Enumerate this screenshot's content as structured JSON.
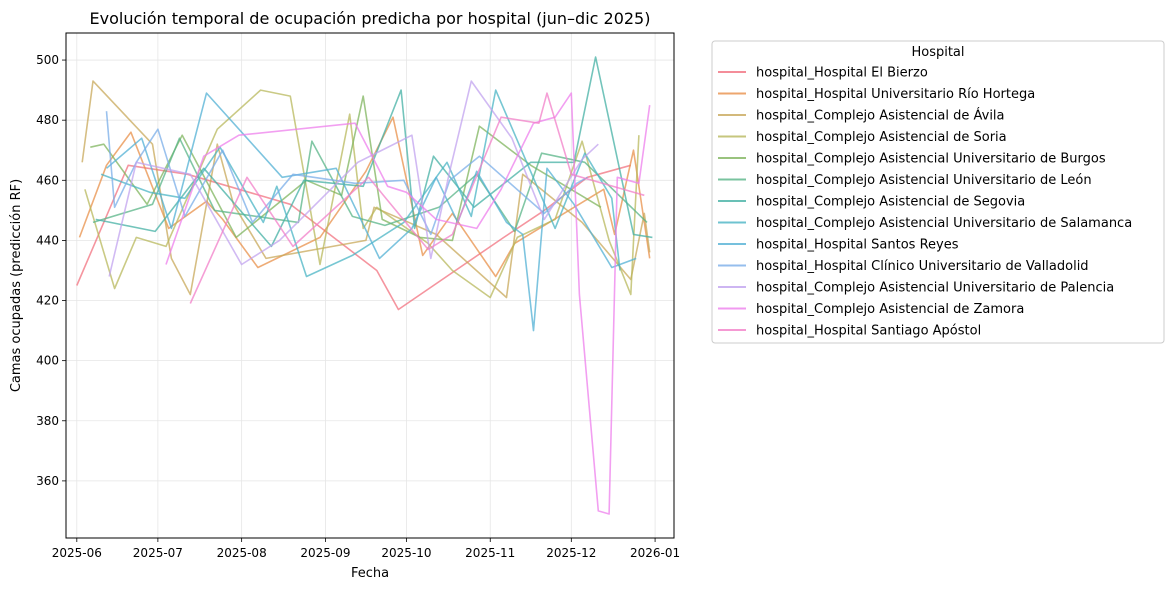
{
  "chart_data": {
    "type": "line",
    "title": "Evolución temporal de ocupación predicha por hospital (jun–dic 2025)",
    "xlabel": "Fecha",
    "ylabel": "Camas ocupadas (predicción RF)",
    "xlim": [
      "2025-05-28",
      "2026-01-08"
    ],
    "ylim": [
      341,
      509
    ],
    "x_ticks": [
      "2025-06-01",
      "2025-07-01",
      "2025-08-01",
      "2025-09-01",
      "2025-10-01",
      "2025-11-01",
      "2025-12-01",
      "2026-01-01"
    ],
    "x_tick_labels": [
      "2025-06",
      "2025-07",
      "2025-08",
      "2025-09",
      "2025-10",
      "2025-11",
      "2025-12",
      "2026-01"
    ],
    "y_ticks": [
      360,
      380,
      400,
      420,
      440,
      460,
      480,
      500
    ],
    "grid": true,
    "legend": {
      "title": "Hospital",
      "placement": "outside right, top"
    },
    "series": [
      {
        "name": "hospital_Hospital El Bierzo",
        "color": "#f1717f",
        "x": [
          "2025-06-01",
          "2025-06-20",
          "2025-07-12",
          "2025-08-19",
          "2025-09-20",
          "2025-09-28",
          "2025-11-06",
          "2025-11-21",
          "2025-12-07",
          "2025-12-23"
        ],
        "y": [
          425,
          465,
          462,
          452,
          430,
          417,
          441,
          450,
          461,
          465
        ]
      },
      {
        "name": "hospital_Hospital Universitario Río Hortega",
        "color": "#e8904a",
        "x": [
          "2025-06-02",
          "2025-06-12",
          "2025-06-21",
          "2025-07-05",
          "2025-07-19",
          "2025-07-25",
          "2025-08-07",
          "2025-08-30",
          "2025-09-16",
          "2025-09-26",
          "2025-10-07",
          "2025-10-18",
          "2025-11-03",
          "2025-11-10",
          "2025-12-13",
          "2025-12-17",
          "2025-12-24",
          "2025-12-30"
        ],
        "y": [
          441,
          465,
          476,
          444,
          453,
          447,
          431,
          441,
          463,
          481,
          435,
          449,
          428,
          439,
          457,
          442,
          470,
          434
        ]
      },
      {
        "name": "hospital_Complejo Asistencial de Ávila",
        "color": "#c8a85a",
        "x": [
          "2025-06-03",
          "2025-06-07",
          "2025-06-29",
          "2025-07-06",
          "2025-07-13",
          "2025-07-23",
          "2025-07-29",
          "2025-08-10",
          "2025-09-16",
          "2025-09-19",
          "2025-10-12",
          "2025-11-07",
          "2025-11-13",
          "2025-12-05",
          "2025-12-23",
          "2025-12-28",
          "2025-12-30"
        ],
        "y": [
          466,
          493,
          472,
          434,
          422,
          472,
          452,
          434,
          440,
          451,
          442,
          421,
          462,
          446,
          427,
          449,
          436
        ]
      },
      {
        "name": "hospital_Complejo Asistencial de Soria",
        "color": "#b8b85c",
        "x": [
          "2025-06-04",
          "2025-06-15",
          "2025-06-23",
          "2025-07-04",
          "2025-07-23",
          "2025-08-08",
          "2025-08-19",
          "2025-08-30",
          "2025-09-10",
          "2025-09-15",
          "2025-09-20",
          "2025-10-09",
          "2025-10-18",
          "2025-11-01",
          "2025-11-11",
          "2025-11-25",
          "2025-12-05",
          "2025-12-15",
          "2025-12-23",
          "2025-12-26"
        ],
        "y": [
          457,
          424,
          441,
          438,
          477,
          490,
          488,
          432,
          482,
          444,
          451,
          439,
          430,
          421,
          441,
          447,
          473,
          440,
          422,
          475
        ]
      },
      {
        "name": "hospital_Complejo Asistencial Universitario de Burgos",
        "color": "#7fb45e",
        "x": [
          "2025-06-06",
          "2025-06-11",
          "2025-06-27",
          "2025-07-10",
          "2025-07-30",
          "2025-08-25",
          "2025-09-07",
          "2025-09-15",
          "2025-09-22",
          "2025-10-06",
          "2025-10-18",
          "2025-10-28",
          "2025-11-16",
          "2025-12-12"
        ],
        "y": [
          471,
          472,
          452,
          475,
          441,
          460,
          455,
          488,
          447,
          441,
          440,
          478,
          465,
          451
        ]
      },
      {
        "name": "hospital_Complejo Asistencial Universitario de León",
        "color": "#58b487",
        "x": [
          "2025-06-07",
          "2025-06-29",
          "2025-07-09",
          "2025-07-22",
          "2025-08-22",
          "2025-08-27",
          "2025-09-11",
          "2025-09-23",
          "2025-10-13",
          "2025-10-27",
          "2025-11-10",
          "2025-11-20",
          "2025-12-06",
          "2025-12-29"
        ],
        "y": [
          446,
          452,
          474,
          450,
          446,
          473,
          448,
          445,
          451,
          462,
          443,
          469,
          466,
          446
        ]
      },
      {
        "name": "hospital_Complejo Asistencial de Segovia",
        "color": "#44b0a4",
        "x": [
          "2025-06-08",
          "2025-06-30",
          "2025-07-18",
          "2025-08-12",
          "2025-08-24",
          "2025-09-15",
          "2025-09-29",
          "2025-10-04",
          "2025-10-11",
          "2025-10-26",
          "2025-11-16",
          "2025-12-02",
          "2025-12-10",
          "2025-12-24",
          "2025-12-31"
        ],
        "y": [
          447,
          443,
          464,
          438,
          460,
          458,
          490,
          444,
          468,
          451,
          466,
          466,
          501,
          442,
          441
        ]
      },
      {
        "name": "hospital_Complejo Asistencial Universitario de Salamanca",
        "color": "#4ab4c4",
        "x": [
          "2025-06-10",
          "2025-06-28",
          "2025-07-11",
          "2025-07-24",
          "2025-08-09",
          "2025-08-14",
          "2025-08-25",
          "2025-09-11",
          "2025-09-30",
          "2025-10-16",
          "2025-10-25",
          "2025-11-03",
          "2025-11-25",
          "2025-12-06",
          "2025-12-16",
          "2025-12-19"
        ],
        "y": [
          462,
          456,
          454,
          471,
          446,
          458,
          428,
          435,
          446,
          466,
          448,
          490,
          444,
          469,
          454,
          430
        ]
      },
      {
        "name": "hospital_Hospital Santos Reyes",
        "color": "#52b0d4",
        "x": [
          "2025-06-12",
          "2025-06-25",
          "2025-07-06",
          "2025-07-19",
          "2025-08-16",
          "2025-09-05",
          "2025-09-21",
          "2025-10-03",
          "2025-10-12",
          "2025-10-20",
          "2025-10-27",
          "2025-11-07",
          "2025-11-13",
          "2025-11-17",
          "2025-11-22",
          "2025-12-02",
          "2025-12-16",
          "2025-12-25"
        ],
        "y": [
          464,
          474,
          444,
          489,
          461,
          464,
          434,
          444,
          461,
          446,
          463,
          446,
          442,
          410,
          464,
          452,
          431,
          434
        ]
      },
      {
        "name": "hospital_Hospital Clínico Universitario de Valladolid",
        "color": "#7aaee8",
        "x": [
          "2025-06-12",
          "2025-06-15",
          "2025-06-23",
          "2025-07-01",
          "2025-07-11",
          "2025-07-25",
          "2025-08-05",
          "2025-08-20",
          "2025-09-12",
          "2025-09-30",
          "2025-10-10",
          "2025-10-17",
          "2025-10-28",
          "2025-11-21",
          "2025-12-03",
          "2025-12-07"
        ],
        "y": [
          483,
          451,
          466,
          477,
          448,
          470,
          446,
          462,
          459,
          460,
          442,
          460,
          468,
          449,
          459,
          461
        ]
      },
      {
        "name": "hospital_Complejo Asistencial Universitario de Palencia",
        "color": "#c1a3ef",
        "x": [
          "2025-06-13",
          "2025-06-23",
          "2025-07-13",
          "2025-08-01",
          "2025-08-15",
          "2025-09-13",
          "2025-10-03",
          "2025-10-10",
          "2025-10-17",
          "2025-10-25",
          "2025-11-09",
          "2025-11-21",
          "2025-12-05",
          "2025-12-11"
        ],
        "y": [
          428,
          466,
          462,
          432,
          440,
          466,
          475,
          434,
          463,
          493,
          474,
          447,
          467,
          472
        ]
      },
      {
        "name": "hospital_Complejo Asistencial de Zamora",
        "color": "#ee7fec",
        "x": [
          "2025-07-04",
          "2025-07-18",
          "2025-07-31",
          "2025-09-12",
          "2025-09-24",
          "2025-10-01",
          "2025-10-12",
          "2025-10-27",
          "2025-11-05",
          "2025-11-17",
          "2025-11-25",
          "2025-12-01",
          "2025-12-04",
          "2025-12-11",
          "2025-12-15",
          "2025-12-18",
          "2025-12-26",
          "2025-12-30"
        ],
        "y": [
          432,
          468,
          475,
          479,
          458,
          456,
          447,
          444,
          457,
          479,
          481,
          489,
          422,
          350,
          349,
          461,
          459,
          485
        ]
      },
      {
        "name": "hospital_Hospital Santiago Apóstol",
        "color": "#f27fc8",
        "x": [
          "2025-07-13",
          "2025-07-31",
          "2025-08-03",
          "2025-08-20",
          "2025-09-17",
          "2025-10-09",
          "2025-10-18",
          "2025-11-05",
          "2025-11-19",
          "2025-11-22",
          "2025-12-01",
          "2025-12-28"
        ],
        "y": [
          419,
          455,
          461,
          438,
          461,
          437,
          442,
          481,
          479,
          489,
          462,
          455
        ]
      }
    ]
  }
}
